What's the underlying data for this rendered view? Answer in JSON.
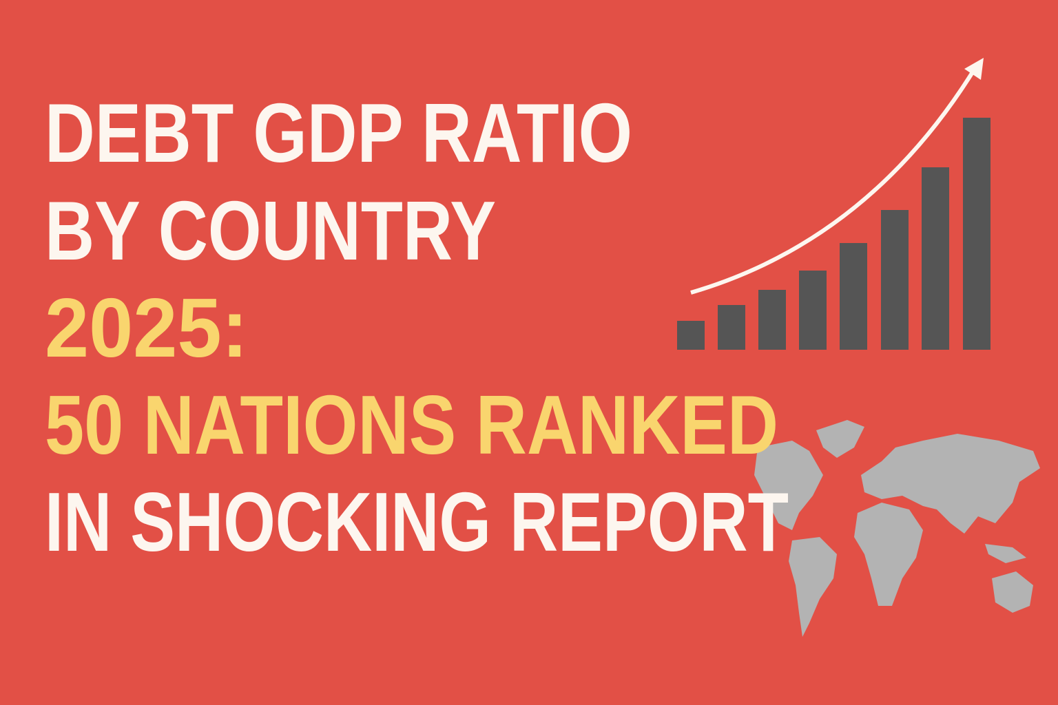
{
  "headline": {
    "lines": [
      "DEBT GDP RATIO",
      "BY COUNTRY",
      "2025:",
      "50 NATIONS RANKED",
      "IN SHOCKING REPORT"
    ]
  }
}
